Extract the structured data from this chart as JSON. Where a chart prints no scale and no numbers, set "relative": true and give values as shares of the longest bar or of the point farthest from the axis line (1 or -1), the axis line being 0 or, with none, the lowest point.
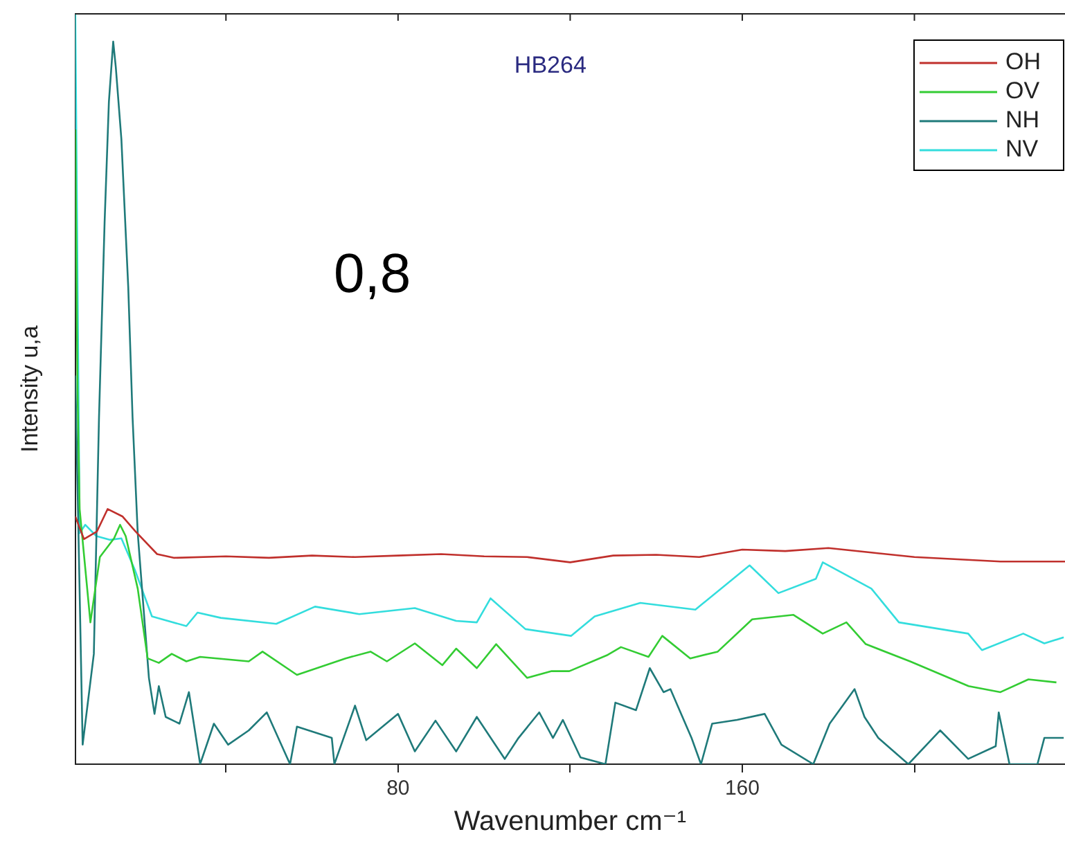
{
  "chart_data": {
    "type": "line",
    "title": "HB264",
    "xlabel": "Wavenumber cm⁻¹",
    "ylabel": "Intensity u,a",
    "annotations": [
      "0,8"
    ],
    "relative": true,
    "xlim": [
      5,
      235
    ],
    "xticks": [
      {
        "value": 40,
        "label": null
      },
      80,
      {
        "value": 120,
        "label": null
      },
      160,
      {
        "value": 200,
        "label": null
      }
    ],
    "legend": "top right",
    "series": [
      {
        "name": "OH",
        "color": "#c0302c",
        "x": [
          5,
          7,
          10,
          12.5,
          16,
          19,
          24,
          28,
          40,
          50,
          60,
          70,
          80,
          90,
          100,
          110,
          120,
          130,
          140,
          150,
          160,
          170,
          180,
          190,
          200,
          210,
          220,
          235
        ],
        "values": [
          0.33,
          0.3,
          0.31,
          0.34,
          0.33,
          0.31,
          0.28,
          0.275,
          0.277,
          0.275,
          0.278,
          0.276,
          0.278,
          0.28,
          0.277,
          0.276,
          0.269,
          0.278,
          0.279,
          0.276,
          0.286,
          0.284,
          0.288,
          0.282,
          0.276,
          0.273,
          0.27,
          0.27
        ]
      },
      {
        "name": "OV",
        "color": "#33cc33",
        "x": [
          5,
          5.5,
          6,
          8.5,
          10.7,
          14,
          15.4,
          16.7,
          19.5,
          21.8,
          24.4,
          27.4,
          30.8,
          34,
          45.3,
          48.5,
          56.5,
          67.8,
          73.6,
          77.4,
          83.9,
          90.3,
          93.5,
          98.3,
          102.8,
          110,
          115.7,
          119.8,
          128.5,
          131.8,
          138.2,
          141.4,
          147.9,
          154.3,
          162.3,
          171.9,
          178.7,
          184.2,
          188.7,
          199,
          212.6,
          220,
          226.5,
          233
        ],
        "values": [
          0.846,
          0.5,
          0.34,
          0.189,
          0.276,
          0.301,
          0.319,
          0.304,
          0.234,
          0.141,
          0.135,
          0.147,
          0.137,
          0.143,
          0.137,
          0.15,
          0.119,
          0.141,
          0.15,
          0.137,
          0.161,
          0.132,
          0.154,
          0.128,
          0.16,
          0.115,
          0.124,
          0.124,
          0.145,
          0.156,
          0.143,
          0.171,
          0.141,
          0.15,
          0.193,
          0.199,
          0.174,
          0.189,
          0.16,
          0.137,
          0.104,
          0.096,
          0.113,
          0.109
        ]
      },
      {
        "name": "NH",
        "color": "#1f7a7a",
        "x": [
          5,
          6.7,
          9.3,
          10.5,
          11.8,
          12.8,
          13.8,
          14.4,
          15.7,
          17.3,
          18.3,
          19.5,
          22.1,
          23.4,
          24.4,
          26,
          29.2,
          31.4,
          34,
          37.2,
          40.5,
          45.3,
          49.5,
          54.9,
          56.5,
          64.6,
          65.2,
          70,
          72.6,
          80,
          83.9,
          88.7,
          93.5,
          98.3,
          104.8,
          108,
          112.8,
          116,
          118.3,
          122.4,
          128.2,
          130.5,
          135.3,
          138.5,
          141.7,
          143.3,
          148.2,
          150.4,
          153,
          158.8,
          165.2,
          169.1,
          176.5,
          180.3,
          186.1,
          188.4,
          191.6,
          198.6,
          206,
          212.5,
          218.9,
          219.6,
          222.1,
          228.6,
          230.2,
          234.7
        ],
        "values": [
          0.518,
          0.026,
          0.147,
          0.462,
          0.722,
          0.883,
          0.963,
          0.929,
          0.833,
          0.635,
          0.462,
          0.308,
          0.115,
          0.067,
          0.104,
          0.063,
          0.054,
          0.096,
          0,
          0.054,
          0.026,
          0.045,
          0.069,
          0,
          0.05,
          0.035,
          0,
          0.078,
          0.032,
          0.067,
          0.017,
          0.058,
          0.017,
          0.063,
          0.007,
          0.035,
          0.069,
          0.035,
          0.059,
          0.009,
          0,
          0.082,
          0.072,
          0.128,
          0.096,
          0.1,
          0.035,
          0,
          0.054,
          0.059,
          0.067,
          0.026,
          0,
          0.054,
          0.1,
          0.063,
          0.035,
          0,
          0.045,
          0.007,
          0.024,
          0.069,
          0,
          0,
          0.035,
          0.035
        ]
      },
      {
        "name": "NV",
        "color": "#33dddd",
        "x": [
          5,
          6,
          7.3,
          9.9,
          13.1,
          15.7,
          18.9,
          22.8,
          30.8,
          33.4,
          38.8,
          51.7,
          60.7,
          71,
          83.9,
          93.5,
          98.3,
          101.5,
          109.6,
          120.2,
          125.7,
          136.3,
          149.1,
          161.7,
          168.4,
          177.1,
          178.7,
          190,
          196.4,
          212.5,
          215.7,
          225.3,
          230.2,
          234.7
        ],
        "values": [
          1,
          0.308,
          0.319,
          0.304,
          0.299,
          0.301,
          0.258,
          0.197,
          0.184,
          0.202,
          0.195,
          0.187,
          0.21,
          0.2,
          0.208,
          0.191,
          0.189,
          0.221,
          0.18,
          0.171,
          0.197,
          0.215,
          0.206,
          0.265,
          0.228,
          0.247,
          0.269,
          0.234,
          0.189,
          0.174,
          0.152,
          0.174,
          0.161,
          0.169
        ]
      }
    ]
  }
}
